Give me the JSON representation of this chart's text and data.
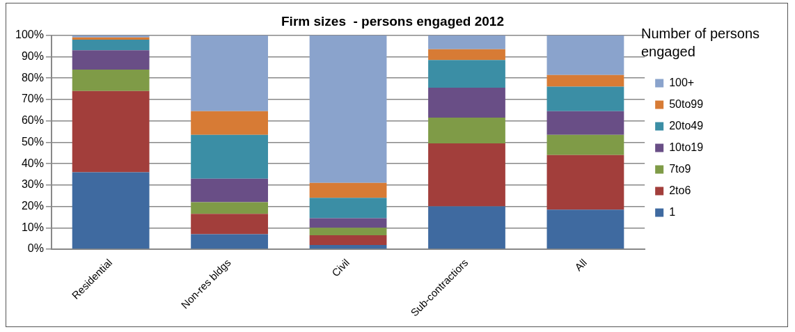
{
  "chart_data": {
    "type": "bar",
    "title": "Firm sizes  - persons engaged 2012",
    "legend_title": "Number of persons engaged",
    "categories": [
      "Residential",
      "Non-res bldgs",
      "Civil",
      "Sub-contractiors",
      "All"
    ],
    "stacked": true,
    "ylim": [
      0,
      100
    ],
    "yticks": [
      {
        "value": 0,
        "label": "0%"
      },
      {
        "value": 10,
        "label": "10%"
      },
      {
        "value": 20,
        "label": "20%"
      },
      {
        "value": 30,
        "label": "30%"
      },
      {
        "value": 40,
        "label": "40%"
      },
      {
        "value": 50,
        "label": "50%"
      },
      {
        "value": 60,
        "label": "60%"
      },
      {
        "value": 70,
        "label": "70%"
      },
      {
        "value": 80,
        "label": "80%"
      },
      {
        "value": 90,
        "label": "90%"
      },
      {
        "value": 100,
        "label": "100%"
      }
    ],
    "grid": "y",
    "legend": "right",
    "series": [
      {
        "name": "1",
        "color": "#3f6aa0",
        "values": [
          36,
          7,
          2,
          20,
          18.5
        ]
      },
      {
        "name": "2to6",
        "color": "#a23e3b",
        "values": [
          38,
          9.5,
          4.5,
          29.5,
          25.5
        ]
      },
      {
        "name": "7to9",
        "color": "#7f9b47",
        "values": [
          10,
          5.5,
          3.5,
          12,
          9.5
        ]
      },
      {
        "name": "10to19",
        "color": "#694e86",
        "values": [
          9,
          11,
          4.5,
          14,
          11
        ]
      },
      {
        "name": "20to49",
        "color": "#3b8ea5",
        "values": [
          5,
          20.5,
          9.5,
          13,
          11.5
        ]
      },
      {
        "name": "50to99",
        "color": "#d77b35",
        "values": [
          1,
          11,
          7,
          5,
          5.5
        ]
      },
      {
        "name": "100+",
        "color": "#8aa3cc",
        "values": [
          1,
          35.5,
          69,
          6.5,
          18.5
        ]
      }
    ]
  }
}
